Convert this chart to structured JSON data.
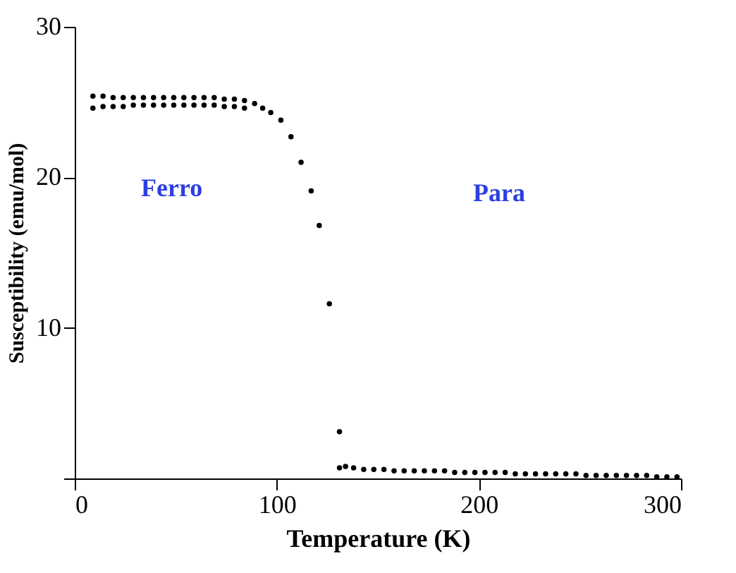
{
  "chart_data": {
    "type": "scatter",
    "xlabel": "Temperature (K)",
    "ylabel": "Susceptibility (emu/mol)",
    "xlim": [
      0,
      300
    ],
    "ylim": [
      0,
      30
    ],
    "xticks": [
      0,
      100,
      200,
      300
    ],
    "yticks": [
      {
        "value": 0,
        "label": null
      },
      10,
      20,
      30
    ],
    "grid": false,
    "marker": "circle",
    "annotations": [
      "Ferro",
      "Para"
    ],
    "series": [
      {
        "color": "#000000",
        "x": [
          9,
          14,
          19,
          24,
          29,
          34,
          39,
          44,
          49,
          54,
          59,
          64,
          69,
          74,
          79,
          84,
          89,
          93,
          97,
          102,
          107,
          112,
          117,
          121,
          126,
          131
        ],
        "values": [
          25.4,
          25.4,
          25.3,
          25.3,
          25.3,
          25.3,
          25.3,
          25.3,
          25.3,
          25.3,
          25.3,
          25.3,
          25.3,
          25.2,
          25.2,
          25.1,
          24.9,
          24.6,
          24.3,
          23.8,
          22.7,
          21.0,
          19.1,
          16.8,
          11.6,
          3.1
        ]
      },
      {
        "color": "#000000",
        "x": [
          9,
          14,
          19,
          24,
          29,
          34,
          39,
          44,
          49,
          54,
          59,
          64,
          69,
          74,
          79,
          84
        ],
        "values": [
          24.6,
          24.7,
          24.7,
          24.7,
          24.8,
          24.8,
          24.8,
          24.8,
          24.8,
          24.8,
          24.8,
          24.8,
          24.8,
          24.7,
          24.7,
          24.6
        ]
      },
      {
        "color": "#000000",
        "x": [
          131,
          134,
          138,
          143,
          148,
          153,
          158,
          163,
          168,
          173,
          178,
          183,
          188,
          193,
          198,
          203,
          208,
          213,
          218,
          223,
          228,
          233,
          238,
          243,
          248,
          253,
          258,
          263,
          268,
          273,
          278,
          283,
          288,
          293,
          298
        ],
        "values": [
          0.7,
          0.8,
          0.7,
          0.6,
          0.6,
          0.6,
          0.5,
          0.5,
          0.5,
          0.5,
          0.5,
          0.5,
          0.4,
          0.4,
          0.4,
          0.4,
          0.4,
          0.4,
          0.3,
          0.3,
          0.3,
          0.3,
          0.3,
          0.3,
          0.3,
          0.2,
          0.2,
          0.2,
          0.2,
          0.2,
          0.2,
          0.2,
          0.1,
          0.1,
          0.1
        ]
      }
    ]
  }
}
